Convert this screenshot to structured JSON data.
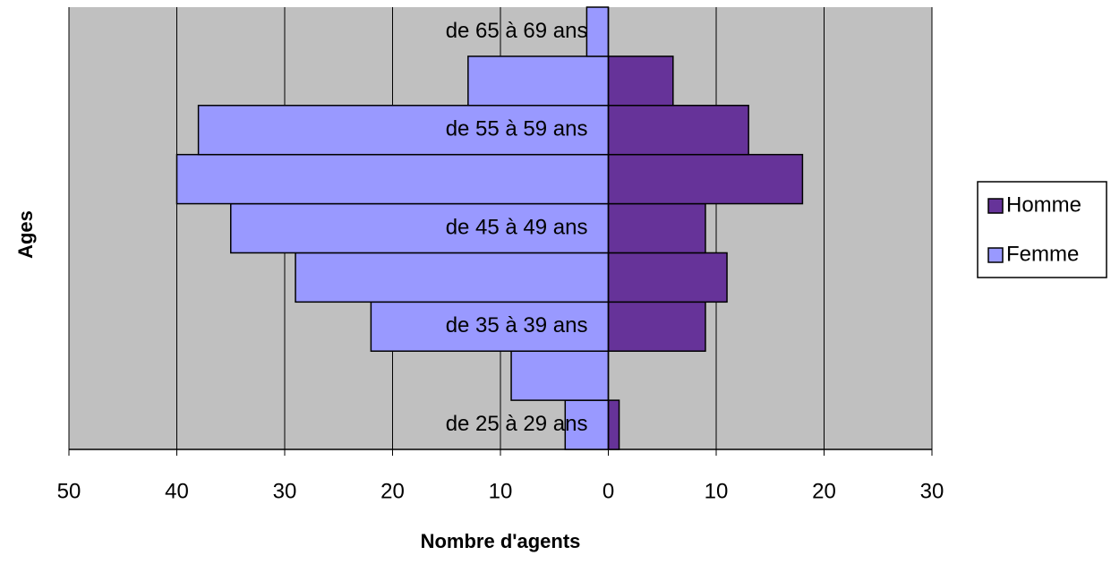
{
  "chart_data": {
    "type": "pyramid",
    "x_label": "Nombre d'agents",
    "y_label": "Ages",
    "categories": [
      "de 25 à 29 ans",
      null,
      "de 35 à 39 ans",
      null,
      "de 45 à 49 ans",
      null,
      "de 55 à 59 ans",
      null,
      "de 65 à 69 ans"
    ],
    "series": [
      {
        "name": "Homme",
        "color": "#663399",
        "values": [
          1,
          0,
          9,
          11,
          9,
          18,
          13,
          6,
          0
        ]
      },
      {
        "name": "Femme",
        "color": "#9999ff",
        "values": [
          -4,
          -9,
          -22,
          -29,
          -35,
          -40,
          -38,
          -13,
          -2
        ]
      }
    ],
    "xlim": [
      -50,
      30
    ],
    "xticks": [
      {
        "value": -50,
        "label": "50"
      },
      {
        "value": -40,
        "label": "40"
      },
      {
        "value": -30,
        "label": "30"
      },
      {
        "value": -20,
        "label": "20"
      },
      {
        "value": -10,
        "label": "10"
      },
      0,
      10,
      20,
      30
    ],
    "grid": true,
    "background": "#c0c0c0",
    "legend": "right"
  }
}
